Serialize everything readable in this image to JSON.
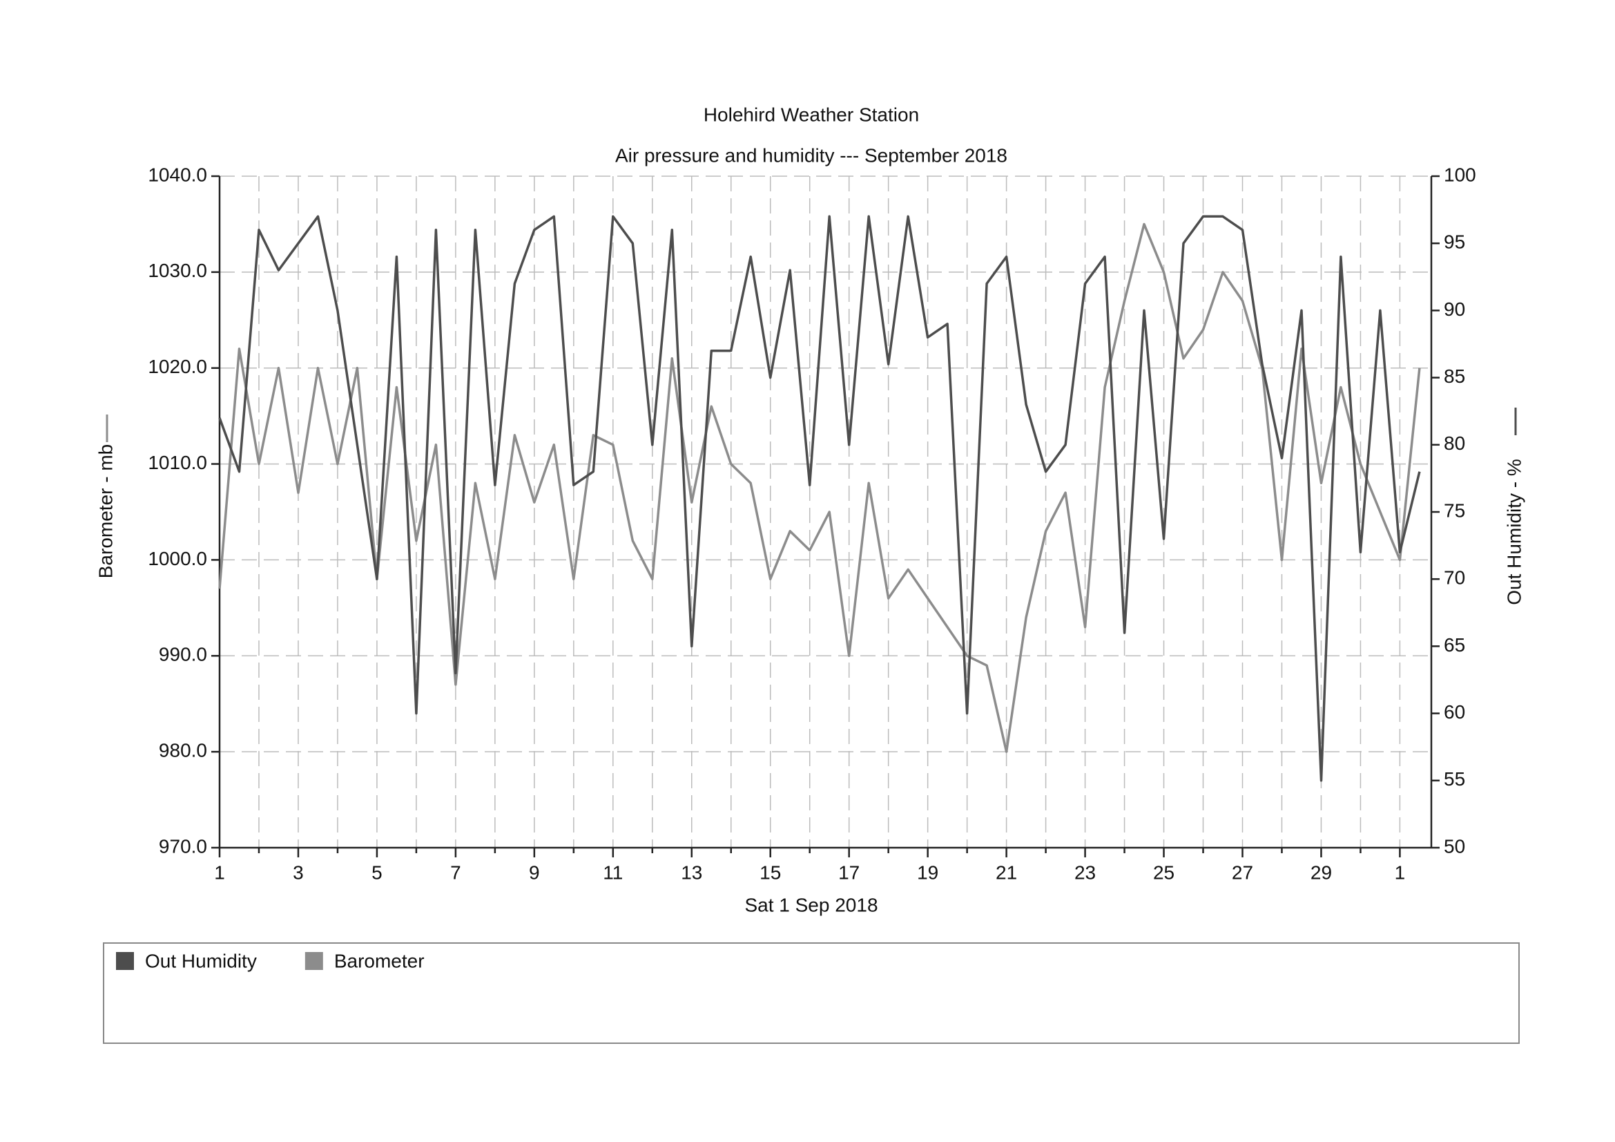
{
  "chart_data": {
    "type": "line",
    "title": "Holehird Weather Station",
    "subtitle": "Air pressure and humidity --- September 2018",
    "x_label": "Sat 1 Sep 2018",
    "y_label": "Barometer - mb",
    "y2_label": "Out Humidity - %",
    "x": [
      1,
      1.5,
      2,
      2.5,
      3,
      3.5,
      4,
      4.5,
      5,
      5.5,
      6,
      6.5,
      7,
      7.5,
      8,
      8.5,
      9,
      9.5,
      10,
      10.5,
      11,
      11.5,
      12,
      12.5,
      13,
      13.5,
      14,
      14.5,
      15,
      15.5,
      16,
      16.5,
      17,
      17.5,
      18,
      18.5,
      19,
      19.5,
      20,
      20.5,
      21,
      21.5,
      22,
      22.5,
      23,
      23.5,
      24,
      24.5,
      25,
      25.5,
      26,
      26.5,
      27,
      27.5,
      28,
      28.5,
      29,
      29.5,
      30,
      30.5,
      31,
      31.5
    ],
    "series": [
      {
        "name": "Out Humidity",
        "color": "#4d4d4d",
        "axis": "y2",
        "values": [
          82,
          78,
          96,
          93,
          95,
          97,
          90,
          80,
          70,
          94,
          60,
          96,
          63,
          96,
          77,
          92,
          96,
          97,
          77,
          78,
          97,
          95,
          80,
          96,
          65,
          87,
          87,
          94,
          85,
          93,
          77,
          97,
          80,
          97,
          86,
          97,
          88,
          89,
          60,
          92,
          94,
          83,
          78,
          80,
          92,
          94,
          66,
          90,
          73,
          95,
          97,
          97,
          96,
          86,
          79,
          90,
          55,
          94,
          72,
          90,
          72,
          78
        ]
      },
      {
        "name": "Barometer",
        "color": "#8c8c8c",
        "values": [
          997,
          1022,
          1010,
          1020,
          1007,
          1020,
          1010,
          1020,
          998,
          1018,
          1002,
          1012,
          987,
          1008,
          998,
          1013,
          1006,
          1012,
          998,
          1013,
          1012,
          1002,
          998,
          1021,
          1006,
          1016,
          1010,
          1008,
          998,
          1003,
          1001,
          1005,
          990,
          1008,
          996,
          999,
          996,
          993,
          990,
          989,
          980,
          994,
          1003,
          1007,
          993,
          1018,
          1027,
          1035,
          1030,
          1021,
          1024,
          1030,
          1027,
          1020,
          1000,
          1022,
          1008,
          1018,
          1010,
          1005,
          1000,
          1020
        ]
      }
    ],
    "xlim": [
      1,
      31.8
    ],
    "xticks": [
      1,
      3,
      5,
      7,
      9,
      11,
      13,
      15,
      17,
      19,
      21,
      23,
      25,
      27,
      29,
      {
        "value": 31,
        "label": "1"
      }
    ],
    "xminorticks": [
      2,
      4,
      6,
      8,
      10,
      12,
      14,
      16,
      18,
      20,
      22,
      24,
      26,
      28,
      30
    ],
    "ylim": [
      970,
      1040
    ],
    "yticks": [
      {
        "value": 970,
        "label": "970.0"
      },
      {
        "value": 980,
        "label": "980.0"
      },
      {
        "value": 990,
        "label": "990.0"
      },
      {
        "value": 1000,
        "label": "1000.0"
      },
      {
        "value": 1010,
        "label": "1010.0"
      },
      {
        "value": 1020,
        "label": "1020.0"
      },
      {
        "value": 1030,
        "label": "1030.0"
      },
      {
        "value": 1040,
        "label": "1040.0"
      }
    ],
    "y2lim": [
      50,
      100
    ],
    "y2ticks": [
      50,
      55,
      60,
      65,
      70,
      75,
      80,
      85,
      90,
      95,
      100
    ],
    "grid": true,
    "legend": "bottom"
  }
}
